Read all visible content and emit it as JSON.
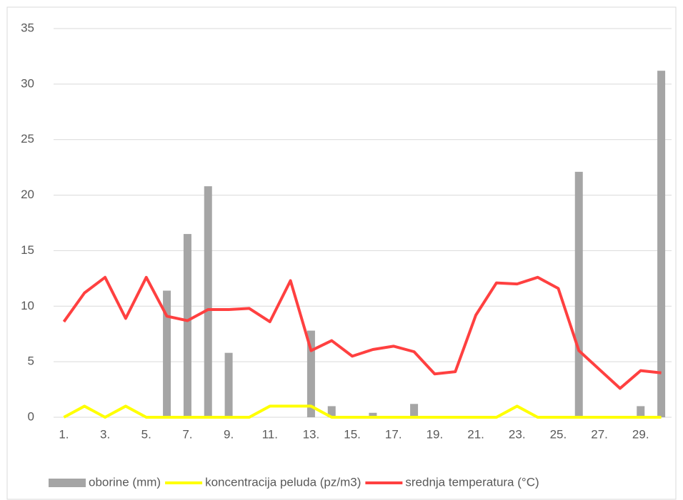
{
  "chart_data": {
    "type": "bar_line",
    "categories": [
      "1.",
      null,
      "3.",
      null,
      "5.",
      null,
      "7.",
      null,
      "9.",
      null,
      "11.",
      null,
      "13.",
      null,
      "15.",
      null,
      "17.",
      null,
      "19.",
      null,
      "21.",
      null,
      "23.",
      null,
      "25.",
      null,
      "27.",
      null,
      "29.",
      null
    ],
    "series": [
      {
        "name": "oborine (mm)",
        "type": "bar",
        "color": "#a5a5a5",
        "values": [
          0,
          0,
          0,
          0,
          0,
          11.4,
          16.5,
          20.8,
          5.8,
          0,
          0,
          0,
          7.8,
          1.0,
          0,
          0.4,
          0,
          1.2,
          0,
          0,
          0,
          0,
          0,
          0,
          0,
          22.1,
          0,
          0,
          1.0,
          31.2
        ]
      },
      {
        "name": "koncentracija peluda (pz/m3)",
        "type": "line",
        "color": "#ffff00",
        "values": [
          0,
          1,
          0,
          1,
          0,
          0,
          0,
          0,
          0,
          0,
          1,
          1,
          1,
          0,
          0,
          0,
          0,
          0,
          0,
          0,
          0,
          0,
          1,
          0,
          0,
          0,
          0,
          0,
          0,
          0
        ]
      },
      {
        "name": "srednja temperatura (°C)",
        "type": "line",
        "color": "#ff4040",
        "values": [
          8.6,
          11.2,
          12.6,
          8.9,
          12.6,
          9.1,
          8.7,
          9.7,
          9.7,
          9.8,
          8.6,
          12.3,
          6.0,
          6.9,
          5.5,
          6.1,
          6.4,
          5.9,
          3.9,
          4.1,
          9.2,
          12.1,
          12.0,
          12.6,
          11.6,
          6.0,
          4.3,
          2.6,
          4.2,
          4.0
        ]
      }
    ],
    "ylim": [
      0,
      35
    ],
    "yticks": [
      0,
      5,
      10,
      15,
      20,
      25,
      30,
      35
    ],
    "grid": true,
    "legend": "bottom"
  }
}
